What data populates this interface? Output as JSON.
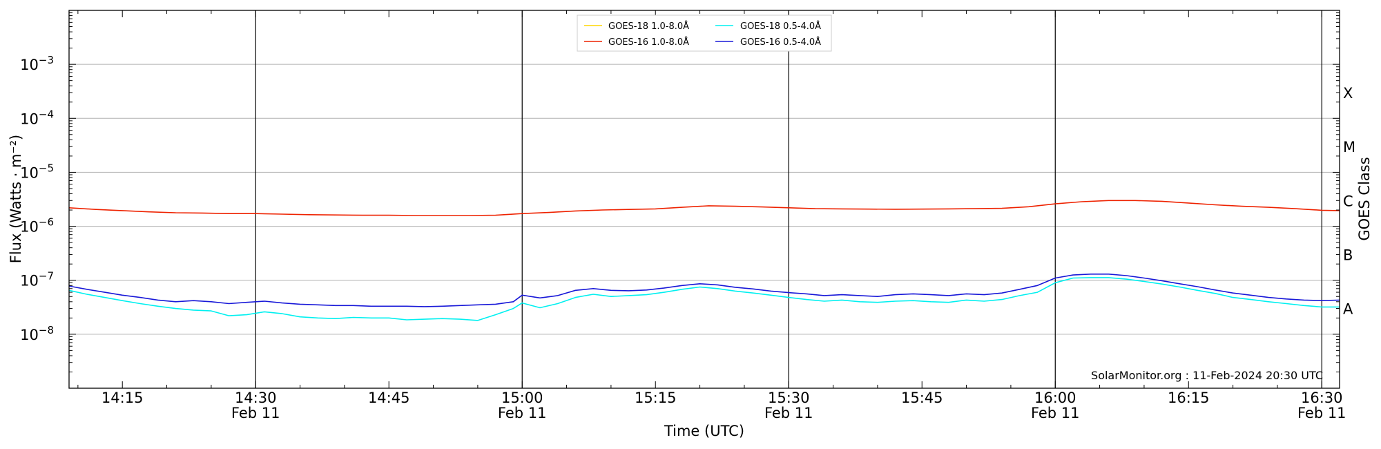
{
  "chart_data": {
    "type": "line",
    "title": "",
    "xlabel": "Time (UTC)",
    "ylabel": "Flux (Watts · m⁻²)",
    "ylabel_right": "GOES Class",
    "y_scale": "log",
    "ylim": [
      1e-09,
      0.01
    ],
    "xlim": [
      "14:09",
      "16:32"
    ],
    "grid": "horizontal",
    "legend_placement": "top-center",
    "y_ticks": [
      {
        "value": 1e-08,
        "base": "10",
        "exp": "−8"
      },
      {
        "value": 1e-07,
        "base": "10",
        "exp": "−7"
      },
      {
        "value": 1e-06,
        "base": "10",
        "exp": "−6"
      },
      {
        "value": 1e-05,
        "base": "10",
        "exp": "−5"
      },
      {
        "value": 0.0001,
        "base": "10",
        "exp": "−4"
      },
      {
        "value": 0.001,
        "base": "10",
        "exp": "−3"
      }
    ],
    "x_ticks": [
      {
        "time": "14:15",
        "label": "14:15",
        "date": ""
      },
      {
        "time": "14:30",
        "label": "14:30",
        "date": "Feb 11"
      },
      {
        "time": "14:45",
        "label": "14:45",
        "date": ""
      },
      {
        "time": "15:00",
        "label": "15:00",
        "date": "Feb 11"
      },
      {
        "time": "15:15",
        "label": "15:15",
        "date": ""
      },
      {
        "time": "15:30",
        "label": "15:30",
        "date": "Feb 11"
      },
      {
        "time": "15:45",
        "label": "15:45",
        "date": ""
      },
      {
        "time": "16:00",
        "label": "16:00",
        "date": "Feb 11"
      },
      {
        "time": "16:15",
        "label": "16:15",
        "date": ""
      },
      {
        "time": "16:30",
        "label": "16:30",
        "date": "Feb 11"
      }
    ],
    "vertical_lines": [
      "14:30",
      "15:00",
      "15:30",
      "16:00",
      "16:30"
    ],
    "goes_classes": [
      {
        "label": "A",
        "value": 3e-08
      },
      {
        "label": "B",
        "value": 3e-07
      },
      {
        "label": "C",
        "value": 3e-06
      },
      {
        "label": "M",
        "value": 3e-05
      },
      {
        "label": "X",
        "value": 0.0003
      }
    ],
    "series": [
      {
        "name": "GOES-18 1.0-8.0Å",
        "color": "#ffd700",
        "x": [],
        "y": []
      },
      {
        "name": "GOES-16 1.0-8.0Å",
        "color": "#ee2200",
        "x": [
          "14:09",
          "14:12",
          "14:15",
          "14:18",
          "14:21",
          "14:24",
          "14:27",
          "14:30",
          "14:33",
          "14:36",
          "14:39",
          "14:42",
          "14:45",
          "14:48",
          "14:51",
          "14:54",
          "14:57",
          "15:00",
          "15:03",
          "15:06",
          "15:09",
          "15:12",
          "15:15",
          "15:18",
          "15:21",
          "15:24",
          "15:27",
          "15:30",
          "15:33",
          "15:36",
          "15:39",
          "15:42",
          "15:45",
          "15:48",
          "15:51",
          "15:54",
          "15:57",
          "16:00",
          "16:03",
          "16:06",
          "16:09",
          "16:12",
          "16:15",
          "16:18",
          "16:21",
          "16:24",
          "16:27",
          "16:30",
          "16:32"
        ],
        "y": [
          2.2e-06,
          2.05e-06,
          1.95e-06,
          1.85e-06,
          1.78e-06,
          1.76e-06,
          1.72e-06,
          1.72e-06,
          1.68e-06,
          1.64e-06,
          1.62e-06,
          1.6e-06,
          1.6e-06,
          1.58e-06,
          1.58e-06,
          1.58e-06,
          1.6e-06,
          1.72e-06,
          1.8e-06,
          1.92e-06,
          2e-06,
          2.05e-06,
          2.1e-06,
          2.25e-06,
          2.4e-06,
          2.35e-06,
          2.28e-06,
          2.2e-06,
          2.12e-06,
          2.1e-06,
          2.08e-06,
          2.07e-06,
          2.08e-06,
          2.1e-06,
          2.12e-06,
          2.15e-06,
          2.3e-06,
          2.6e-06,
          2.85e-06,
          3e-06,
          3e-06,
          2.9e-06,
          2.7e-06,
          2.5e-06,
          2.35e-06,
          2.25e-06,
          2.12e-06,
          1.98e-06,
          1.95e-06
        ]
      },
      {
        "name": "GOES-18 0.5-4.0Å",
        "color": "#00f0f0",
        "x": [
          "14:09",
          "14:11",
          "14:13",
          "14:15",
          "14:17",
          "14:19",
          "14:21",
          "14:23",
          "14:25",
          "14:27",
          "14:29",
          "14:31",
          "14:33",
          "14:35",
          "14:37",
          "14:39",
          "14:41",
          "14:43",
          "14:45",
          "14:47",
          "14:49",
          "14:51",
          "14:53",
          "14:55",
          "14:57",
          "14:59",
          "15:00",
          "15:02",
          "15:04",
          "15:06",
          "15:08",
          "15:10",
          "15:12",
          "15:14",
          "15:16",
          "15:18",
          "15:20",
          "15:22",
          "15:24",
          "15:26",
          "15:28",
          "15:30",
          "15:32",
          "15:34",
          "15:36",
          "15:38",
          "15:40",
          "15:42",
          "15:44",
          "15:46",
          "15:48",
          "15:50",
          "15:52",
          "15:54",
          "15:56",
          "15:58",
          "16:00",
          "16:02",
          "16:04",
          "16:06",
          "16:08",
          "16:10",
          "16:12",
          "16:14",
          "16:16",
          "16:18",
          "16:20",
          "16:22",
          "16:24",
          "16:26",
          "16:28",
          "16:30",
          "16:32"
        ],
        "y": [
          6.5e-08,
          5.5e-08,
          4.8e-08,
          4.2e-08,
          3.7e-08,
          3.3e-08,
          3e-08,
          2.8e-08,
          2.7e-08,
          2.2e-08,
          2.3e-08,
          2.6e-08,
          2.4e-08,
          2.1e-08,
          2e-08,
          1.95e-08,
          2.05e-08,
          2e-08,
          2e-08,
          1.85e-08,
          1.9e-08,
          1.95e-08,
          1.9e-08,
          1.8e-08,
          2.3e-08,
          3e-08,
          3.8e-08,
          3.1e-08,
          3.7e-08,
          4.8e-08,
          5.5e-08,
          5e-08,
          5.2e-08,
          5.4e-08,
          6e-08,
          6.8e-08,
          7.5e-08,
          7e-08,
          6.3e-08,
          5.8e-08,
          5.3e-08,
          4.8e-08,
          4.4e-08,
          4.1e-08,
          4.3e-08,
          4e-08,
          3.9e-08,
          4.1e-08,
          4.2e-08,
          4e-08,
          3.9e-08,
          4.3e-08,
          4.1e-08,
          4.4e-08,
          5.2e-08,
          6e-08,
          9e-08,
          1.1e-07,
          1.12e-07,
          1.12e-07,
          1.05e-07,
          9.5e-08,
          8.5e-08,
          7.5e-08,
          6.5e-08,
          5.7e-08,
          4.8e-08,
          4.4e-08,
          4e-08,
          3.7e-08,
          3.4e-08,
          3.2e-08,
          3.2e-08
        ]
      },
      {
        "name": "GOES-16 0.5-4.0Å",
        "color": "#1818d8",
        "x": [
          "14:09",
          "14:11",
          "14:13",
          "14:15",
          "14:17",
          "14:19",
          "14:21",
          "14:23",
          "14:25",
          "14:27",
          "14:29",
          "14:31",
          "14:33",
          "14:35",
          "14:37",
          "14:39",
          "14:41",
          "14:43",
          "14:45",
          "14:47",
          "14:49",
          "14:51",
          "14:53",
          "14:55",
          "14:57",
          "14:59",
          "15:00",
          "15:02",
          "15:04",
          "15:06",
          "15:08",
          "15:10",
          "15:12",
          "15:14",
          "15:16",
          "15:18",
          "15:20",
          "15:22",
          "15:24",
          "15:26",
          "15:28",
          "15:30",
          "15:32",
          "15:34",
          "15:36",
          "15:38",
          "15:40",
          "15:42",
          "15:44",
          "15:46",
          "15:48",
          "15:50",
          "15:52",
          "15:54",
          "15:56",
          "15:58",
          "16:00",
          "16:02",
          "16:04",
          "16:06",
          "16:08",
          "16:10",
          "16:12",
          "16:14",
          "16:16",
          "16:18",
          "16:20",
          "16:22",
          "16:24",
          "16:26",
          "16:28",
          "16:30",
          "16:32"
        ],
        "y": [
          7.8e-08,
          6.8e-08,
          6e-08,
          5.3e-08,
          4.8e-08,
          4.3e-08,
          4e-08,
          4.2e-08,
          4e-08,
          3.7e-08,
          3.9e-08,
          4.1e-08,
          3.8e-08,
          3.6e-08,
          3.5e-08,
          3.4e-08,
          3.4e-08,
          3.3e-08,
          3.3e-08,
          3.3e-08,
          3.25e-08,
          3.3e-08,
          3.4e-08,
          3.5e-08,
          3.6e-08,
          4e-08,
          5.3e-08,
          4.7e-08,
          5.2e-08,
          6.5e-08,
          7e-08,
          6.5e-08,
          6.4e-08,
          6.6e-08,
          7.2e-08,
          8e-08,
          8.6e-08,
          8.2e-08,
          7.4e-08,
          6.9e-08,
          6.3e-08,
          5.9e-08,
          5.6e-08,
          5.2e-08,
          5.4e-08,
          5.2e-08,
          5e-08,
          5.4e-08,
          5.6e-08,
          5.4e-08,
          5.2e-08,
          5.6e-08,
          5.4e-08,
          5.8e-08,
          6.8e-08,
          8e-08,
          1.1e-07,
          1.25e-07,
          1.3e-07,
          1.3e-07,
          1.22e-07,
          1.1e-07,
          9.8e-08,
          8.6e-08,
          7.6e-08,
          6.6e-08,
          5.8e-08,
          5.3e-08,
          4.8e-08,
          4.5e-08,
          4.3e-08,
          4.2e-08,
          4.3e-08
        ]
      }
    ],
    "annotation": "SolarMonitor.org : 11-Feb-2024 20:30 UTC"
  }
}
